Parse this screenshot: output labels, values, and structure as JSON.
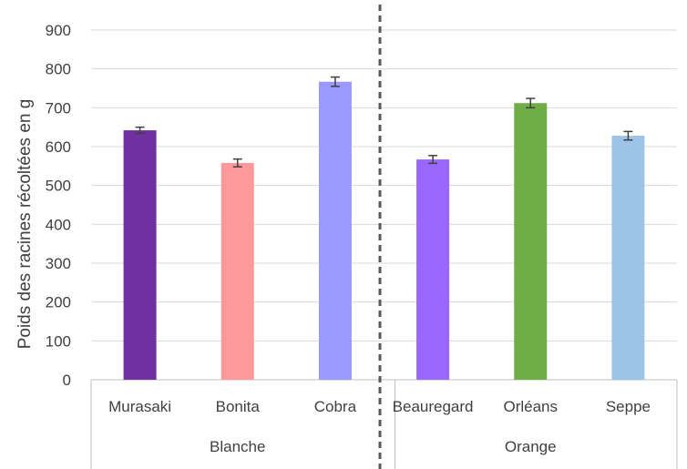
{
  "chart_data": {
    "type": "bar",
    "ylabel": "Poids des racines récoltées  en g",
    "ylim": [
      0,
      900
    ],
    "yticks": [
      0,
      100,
      200,
      300,
      400,
      500,
      600,
      700,
      800,
      900
    ],
    "grid": true,
    "categories": [
      "Murasaki",
      "Bonita",
      "Cobra",
      "Beauregard",
      "Orléans",
      "Seppe"
    ],
    "values": [
      642,
      558,
      767,
      567,
      712,
      628
    ],
    "errors": [
      8,
      10,
      12,
      10,
      12,
      11
    ],
    "colors": [
      "#7030a0",
      "#ff9999",
      "#9999ff",
      "#9966ff",
      "#70ad47",
      "#9dc3e6"
    ],
    "groups": [
      {
        "label": "Blanche",
        "categories": [
          "Murasaki",
          "Bonita",
          "Cobra"
        ]
      },
      {
        "label": "Orange",
        "categories": [
          "Beauregard",
          "Orléans",
          "Seppe"
        ]
      }
    ]
  }
}
